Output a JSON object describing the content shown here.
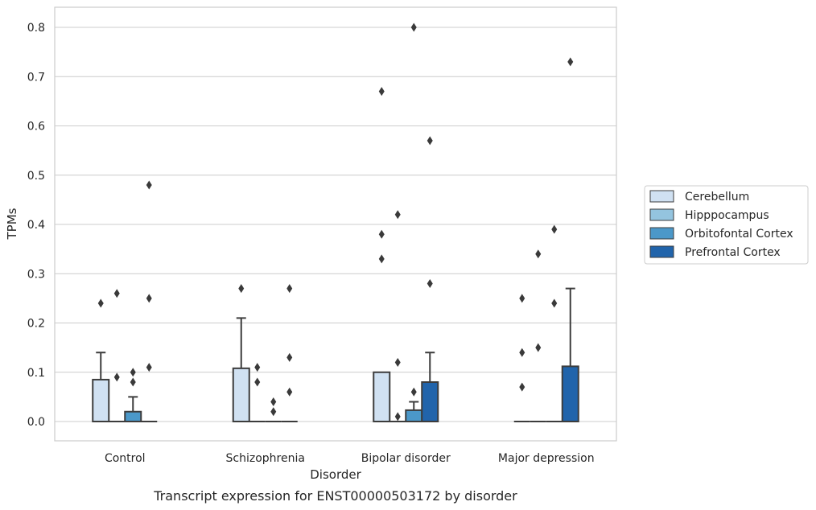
{
  "chart_data": {
    "type": "bar",
    "caption": "Transcript expression for ENST00000503172 by disorder",
    "xlabel": "Disorder",
    "ylabel": "TPMs",
    "ylim": [
      -0.04,
      0.84
    ],
    "yticks": [
      0.0,
      0.1,
      0.2,
      0.3,
      0.4,
      0.5,
      0.6,
      0.7,
      0.8
    ],
    "ytick_labels": [
      "0.0",
      "0.1",
      "0.2",
      "0.3",
      "0.4",
      "0.5",
      "0.6",
      "0.7",
      "0.8"
    ],
    "grid": true,
    "legend_position": "right",
    "categories": [
      "Control",
      "Schizophrenia",
      "Bipolar disorder",
      "Major depression"
    ],
    "series": [
      {
        "name": "Cerebellum",
        "color": "#d0e1f2",
        "values": [
          0.085,
          0.108,
          0.1,
          0.0
        ],
        "error_upper": [
          0.14,
          0.21,
          null,
          null
        ],
        "outliers": [
          [
            0.24
          ],
          [
            0.27
          ],
          [
            0.67,
            0.38,
            0.33
          ],
          [
            0.25,
            0.14,
            0.07
          ]
        ]
      },
      {
        "name": "Hipppocampus",
        "color": "#94c4df",
        "values": [
          0.0,
          0.0,
          0.0,
          0.0
        ],
        "error_upper": [
          null,
          null,
          null,
          null
        ],
        "outliers": [
          [
            0.26,
            0.09
          ],
          [
            0.11,
            0.08
          ],
          [
            0.42,
            0.12,
            0.01
          ],
          [
            0.34,
            0.15
          ]
        ]
      },
      {
        "name": "Orbitofontal Cortex",
        "color": "#4b98c9",
        "values": [
          0.02,
          0.0,
          0.023,
          0.0
        ],
        "error_upper": [
          0.05,
          null,
          0.04,
          null
        ],
        "outliers": [
          [
            0.1,
            0.08
          ],
          [
            0.04,
            0.02
          ],
          [
            0.8,
            0.06
          ],
          [
            0.39,
            0.24
          ]
        ]
      },
      {
        "name": "Prefrontal Cortex",
        "color": "#2164ab",
        "values": [
          0.0,
          0.0,
          0.08,
          0.112
        ],
        "error_upper": [
          null,
          null,
          0.14,
          0.27
        ],
        "outliers": [
          [
            0.48,
            0.25,
            0.11
          ],
          [
            0.27,
            0.13,
            0.06
          ],
          [
            0.57,
            0.28
          ],
          [
            0.73
          ]
        ]
      }
    ]
  }
}
